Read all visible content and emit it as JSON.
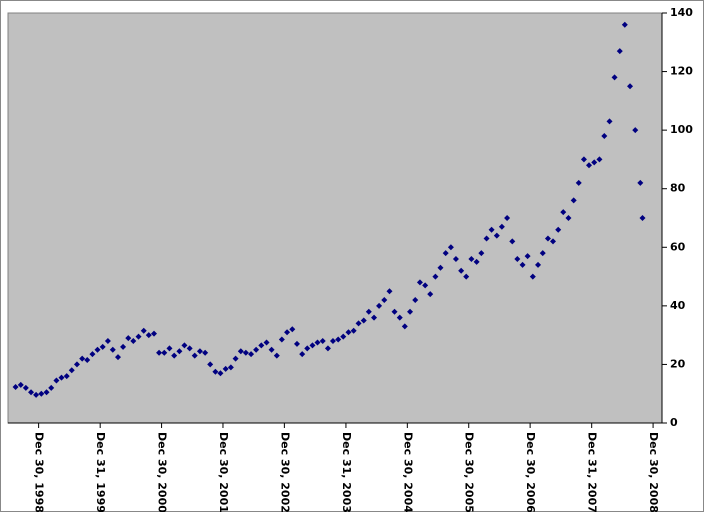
{
  "chart_data": {
    "type": "scatter",
    "color": "#000080",
    "x": [
      "1998-08-15",
      "1998-09-15",
      "1998-10-15",
      "1998-11-15",
      "1998-12-15",
      "1999-01-15",
      "1999-02-15",
      "1999-03-15",
      "1999-04-15",
      "1999-05-15",
      "1999-06-15",
      "1999-07-15",
      "1999-08-15",
      "1999-09-15",
      "1999-10-15",
      "1999-11-15",
      "1999-12-15",
      "2000-01-15",
      "2000-02-15",
      "2000-03-15",
      "2000-04-15",
      "2000-05-15",
      "2000-06-15",
      "2000-07-15",
      "2000-08-15",
      "2000-09-15",
      "2000-10-15",
      "2000-11-15",
      "2000-12-15",
      "2001-01-15",
      "2001-02-15",
      "2001-03-15",
      "2001-04-15",
      "2001-05-15",
      "2001-06-15",
      "2001-07-15",
      "2001-08-15",
      "2001-09-15",
      "2001-10-15",
      "2001-11-15",
      "2001-12-15",
      "2002-01-15",
      "2002-02-15",
      "2002-03-15",
      "2002-04-15",
      "2002-05-15",
      "2002-06-15",
      "2002-07-15",
      "2002-08-15",
      "2002-09-15",
      "2002-10-15",
      "2002-11-15",
      "2002-12-15",
      "2003-01-15",
      "2003-02-15",
      "2003-03-15",
      "2003-04-15",
      "2003-05-15",
      "2003-06-15",
      "2003-07-15",
      "2003-08-15",
      "2003-09-15",
      "2003-10-15",
      "2003-11-15",
      "2003-12-15",
      "2004-01-15",
      "2004-02-15",
      "2004-03-15",
      "2004-04-15",
      "2004-05-15",
      "2004-06-15",
      "2004-07-15",
      "2004-08-15",
      "2004-09-15",
      "2004-10-15",
      "2004-11-15",
      "2004-12-15",
      "2005-01-15",
      "2005-02-15",
      "2005-03-15",
      "2005-04-15",
      "2005-05-15",
      "2005-06-15",
      "2005-07-15",
      "2005-08-15",
      "2005-09-15",
      "2005-10-15",
      "2005-11-15",
      "2005-12-15",
      "2006-01-15",
      "2006-02-15",
      "2006-03-15",
      "2006-04-15",
      "2006-05-15",
      "2006-06-15",
      "2006-07-15",
      "2006-08-15",
      "2006-09-15",
      "2006-10-15",
      "2006-11-15",
      "2006-12-15",
      "2007-01-15",
      "2007-02-15",
      "2007-03-15",
      "2007-04-15",
      "2007-05-15",
      "2007-06-15",
      "2007-07-15",
      "2007-08-15",
      "2007-09-15",
      "2007-10-15",
      "2007-11-15",
      "2007-12-15",
      "2008-01-15",
      "2008-02-15",
      "2008-03-15",
      "2008-04-15",
      "2008-05-15",
      "2008-06-15",
      "2008-07-15",
      "2008-08-15",
      "2008-09-15",
      "2008-10-15",
      "2008-10-28"
    ],
    "values": [
      12.3,
      13,
      12,
      10.5,
      9.6,
      10,
      10.5,
      12,
      14.5,
      15.5,
      16,
      18,
      20,
      22,
      21.5,
      23.5,
      25,
      26,
      28,
      25,
      22.5,
      26,
      29,
      28,
      29.5,
      31.5,
      30,
      30.5,
      24,
      24,
      25.5,
      23,
      24.5,
      26.5,
      25.5,
      23,
      24.5,
      24,
      20,
      17.5,
      17,
      18.5,
      19,
      22,
      24.5,
      24,
      23.5,
      25,
      26.5,
      27.5,
      25,
      23,
      28.5,
      31,
      32,
      27,
      23.5,
      25.5,
      26.5,
      27.5,
      28,
      25.5,
      28,
      28.5,
      29.5,
      31,
      31.5,
      34,
      35,
      38,
      36,
      40,
      42,
      45,
      38,
      36,
      33,
      38,
      42,
      48,
      47,
      44,
      50,
      53,
      58,
      60,
      56,
      52,
      50,
      56,
      55,
      58,
      63,
      66,
      64,
      67,
      70,
      62,
      56,
      54,
      57,
      50,
      54,
      58,
      63,
      62,
      66,
      72,
      70,
      76,
      82,
      90,
      88,
      89,
      90,
      98,
      103,
      118,
      127,
      136,
      115,
      100,
      82,
      70
    ],
    "xlim": [
      "1998-07-01",
      "2009-02-21"
    ],
    "xticks": [
      {
        "value": "1998-12-30",
        "label": "Dec 30, 1998"
      },
      {
        "value": "1999-12-31",
        "label": "Dec 31, 1999"
      },
      {
        "value": "2000-12-30",
        "label": "Dec 30, 2000"
      },
      {
        "value": "2001-12-30",
        "label": "Dec 30, 2001"
      },
      {
        "value": "2002-12-30",
        "label": "Dec 30, 2002"
      },
      {
        "value": "2003-12-31",
        "label": "Dec 31, 2003"
      },
      {
        "value": "2004-12-30",
        "label": "Dec 30, 2004"
      },
      {
        "value": "2005-12-30",
        "label": "Dec 30, 2005"
      },
      {
        "value": "2006-12-30",
        "label": "Dec 30, 2006"
      },
      {
        "value": "2007-12-31",
        "label": "Dec 31, 2007"
      },
      {
        "value": "2008-12-30",
        "label": "Dec 30, 2008"
      }
    ],
    "ylim": [
      0,
      140
    ],
    "yticks": [
      0,
      20,
      40,
      60,
      80,
      100,
      120,
      140
    ]
  }
}
